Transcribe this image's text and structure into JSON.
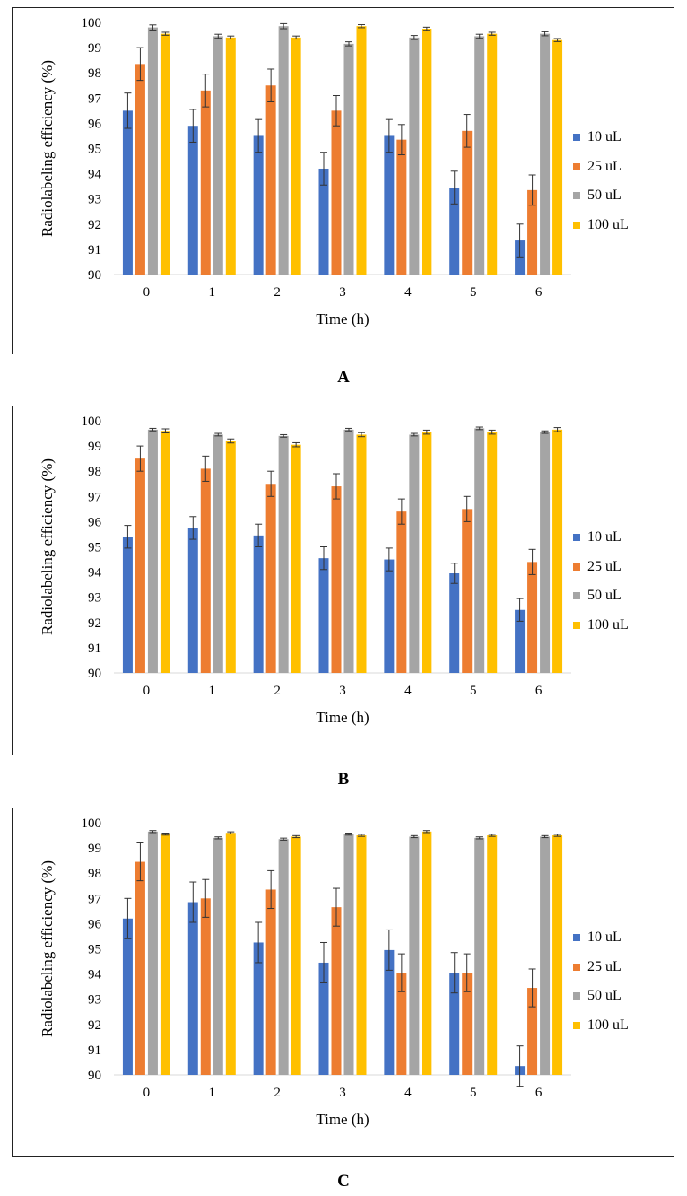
{
  "chart_data": [
    {
      "panel_label": "A",
      "type": "bar",
      "xlabel": "Time (h)",
      "ylabel": "Radiolabeling efficiency (%)",
      "ylim": [
        90,
        100
      ],
      "yticks": [
        "90",
        "91",
        "92",
        "93",
        "94",
        "95",
        "96",
        "97",
        "98",
        "99",
        "100"
      ],
      "categories": [
        "0",
        "1",
        "2",
        "3",
        "4",
        "5",
        "6"
      ],
      "series": [
        {
          "name": "10 uL",
          "color": "#4472C4",
          "values": [
            96.5,
            95.9,
            95.5,
            94.2,
            95.5,
            93.45,
            91.35
          ],
          "errors": [
            0.7,
            0.65,
            0.65,
            0.65,
            0.65,
            0.65,
            0.65
          ]
        },
        {
          "name": "25 uL",
          "color": "#ED7D31",
          "values": [
            98.35,
            97.3,
            97.5,
            96.5,
            95.35,
            95.7,
            93.35
          ],
          "errors": [
            0.65,
            0.65,
            0.65,
            0.6,
            0.6,
            0.65,
            0.6
          ]
        },
        {
          "name": "50 uL",
          "color": "#A5A5A5",
          "values": [
            99.8,
            99.45,
            99.85,
            99.15,
            99.4,
            99.45,
            99.55
          ],
          "errors": [
            0.1,
            0.08,
            0.1,
            0.08,
            0.08,
            0.08,
            0.08
          ]
        },
        {
          "name": "100 uL",
          "color": "#FFC000",
          "values": [
            99.55,
            99.4,
            99.4,
            99.85,
            99.75,
            99.55,
            99.3
          ],
          "errors": [
            0.06,
            0.06,
            0.06,
            0.06,
            0.06,
            0.06,
            0.06
          ]
        }
      ]
    },
    {
      "panel_label": "B",
      "type": "bar",
      "xlabel": "Time (h)",
      "ylabel": "Radiolabeling efficiency (%)",
      "ylim": [
        90,
        100
      ],
      "yticks": [
        "90",
        "91",
        "92",
        "93",
        "94",
        "95",
        "96",
        "97",
        "98",
        "99",
        "100"
      ],
      "categories": [
        "0",
        "1",
        "2",
        "3",
        "4",
        "5",
        "6"
      ],
      "series": [
        {
          "name": "10 uL",
          "color": "#4472C4",
          "values": [
            95.4,
            95.75,
            95.45,
            94.55,
            94.5,
            93.95,
            92.5
          ],
          "errors": [
            0.45,
            0.45,
            0.45,
            0.45,
            0.45,
            0.4,
            0.45
          ]
        },
        {
          "name": "25 uL",
          "color": "#ED7D31",
          "values": [
            98.5,
            98.1,
            97.5,
            97.4,
            96.4,
            96.5,
            94.4
          ],
          "errors": [
            0.5,
            0.5,
            0.5,
            0.5,
            0.5,
            0.5,
            0.5
          ]
        },
        {
          "name": "50 uL",
          "color": "#A5A5A5",
          "values": [
            99.65,
            99.45,
            99.4,
            99.65,
            99.45,
            99.7,
            99.55
          ],
          "errors": [
            0.05,
            0.05,
            0.05,
            0.05,
            0.05,
            0.05,
            0.05
          ]
        },
        {
          "name": "100 uL",
          "color": "#FFC000",
          "values": [
            99.6,
            99.2,
            99.05,
            99.45,
            99.55,
            99.55,
            99.65
          ],
          "errors": [
            0.08,
            0.08,
            0.08,
            0.08,
            0.08,
            0.08,
            0.08
          ]
        }
      ]
    },
    {
      "panel_label": "C",
      "type": "bar",
      "xlabel": "Time (h)",
      "ylabel": "Radiolabeling efficiency (%)",
      "ylim": [
        90,
        100
      ],
      "yticks": [
        "90",
        "91",
        "92",
        "93",
        "94",
        "95",
        "96",
        "97",
        "98",
        "99",
        "100"
      ],
      "categories": [
        "0",
        "1",
        "2",
        "3",
        "4",
        "5",
        "6"
      ],
      "series": [
        {
          "name": "10 uL",
          "color": "#4472C4",
          "values": [
            96.2,
            96.85,
            95.25,
            94.45,
            94.95,
            94.05,
            90.35
          ],
          "errors": [
            0.8,
            0.8,
            0.8,
            0.8,
            0.8,
            0.8,
            0.8
          ]
        },
        {
          "name": "25 uL",
          "color": "#ED7D31",
          "values": [
            98.45,
            97.0,
            97.35,
            96.65,
            94.05,
            94.05,
            93.45
          ],
          "errors": [
            0.75,
            0.75,
            0.75,
            0.75,
            0.75,
            0.75,
            0.75
          ]
        },
        {
          "name": "50 uL",
          "color": "#A5A5A5",
          "values": [
            99.65,
            99.4,
            99.35,
            99.55,
            99.45,
            99.4,
            99.45
          ],
          "errors": [
            0.04,
            0.04,
            0.04,
            0.04,
            0.04,
            0.04,
            0.04
          ]
        },
        {
          "name": "100 uL",
          "color": "#FFC000",
          "values": [
            99.55,
            99.6,
            99.45,
            99.5,
            99.65,
            99.5,
            99.5
          ],
          "errors": [
            0.04,
            0.04,
            0.04,
            0.04,
            0.04,
            0.04,
            0.04
          ]
        }
      ]
    }
  ]
}
